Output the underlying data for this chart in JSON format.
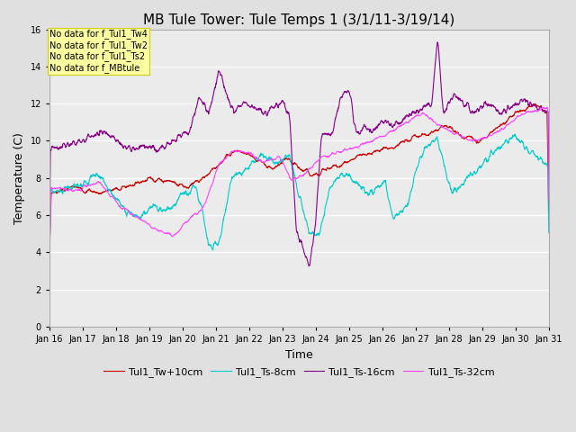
{
  "title": "MB Tule Tower: Tule Temps 1 (3/1/11-3/19/14)",
  "xlabel": "Time",
  "ylabel": "Temperature (C)",
  "ylim": [
    0,
    16
  ],
  "yticks": [
    0,
    2,
    4,
    6,
    8,
    10,
    12,
    14,
    16
  ],
  "legend_labels": [
    "Tul1_Tw+10cm",
    "Tul1_Ts-8cm",
    "Tul1_Ts-16cm",
    "Tul1_Ts-32cm"
  ],
  "legend_colors": [
    "#cc0000",
    "#00cccc",
    "#880088",
    "#ff44ff"
  ],
  "no_data_texts": [
    "No data for f_Tul1_Tw4",
    "No data for f_Tul1_Tw2",
    "No data for f_Tul1_Ts2",
    "No data for f_MBtule"
  ],
  "background_color": "#e0e0e0",
  "plot_bg_color": "#ebebeb",
  "grid_color": "#ffffff",
  "note_bg_color": "#ffff99",
  "note_border_color": "#cccc00",
  "tick_label_size": 7,
  "axis_label_size": 9,
  "title_size": 11
}
